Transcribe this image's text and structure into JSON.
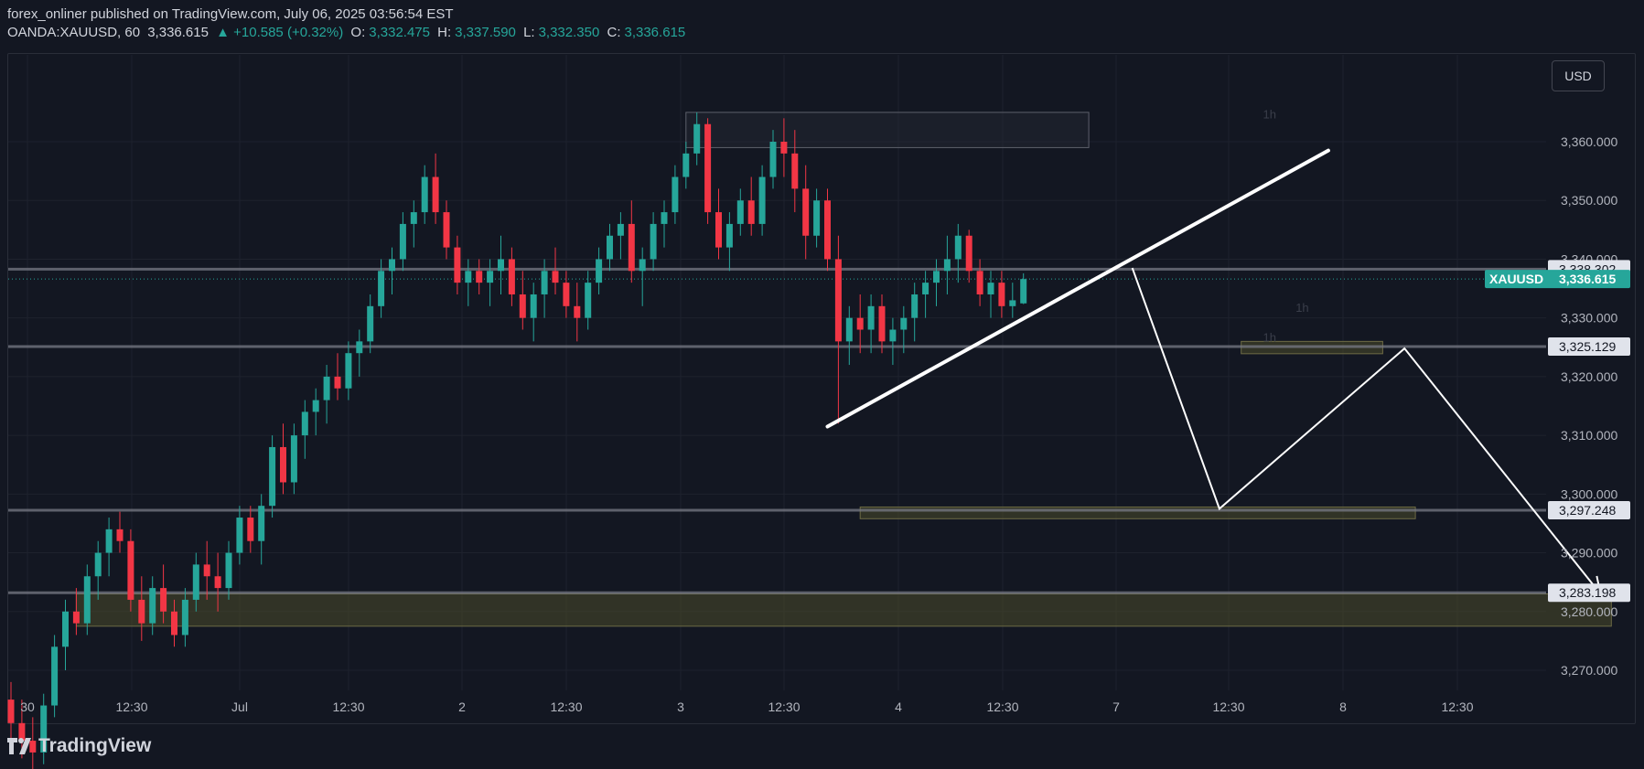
{
  "header": {
    "published": "forex_onliner published on TradingView.com, July 06, 2025 03:56:54 EST",
    "symbol": "OANDA:XAUUSD, 60",
    "last": "3,336.615",
    "change": "▲ +10.585 (+0.32%)",
    "o_label": "O:",
    "o_val": "3,332.475",
    "h_label": "H:",
    "h_val": "3,337.590",
    "l_label": "L:",
    "l_val": "3,332.350",
    "c_label": "C:",
    "c_val": "3,336.615"
  },
  "currency_button": "USD",
  "footer": {
    "brand": "TradingView",
    "logo": "tradingview-logo-icon"
  },
  "colors": {
    "bg": "#131722",
    "up": "#26a69a",
    "down": "#f23645",
    "level": "#787b86",
    "zone": "#4a4a2a",
    "drawing": "#ffffff"
  },
  "chart_data": {
    "type": "candlestick",
    "symbol": "XAUUSD",
    "interval": "60",
    "ylim": [
      3265,
      3368
    ],
    "y_ticks": [
      "3,360.000",
      "3,350.000",
      "3,340.000",
      "3,330.000",
      "3,320.000",
      "3,310.000",
      "3,300.000",
      "3,290.000",
      "3,280.000",
      "3,270.000"
    ],
    "y_tick_values": [
      3360,
      3350,
      3340,
      3330,
      3320,
      3310,
      3300,
      3290,
      3280,
      3270
    ],
    "x_ticks": [
      "30",
      "12:30",
      "Jul",
      "12:30",
      "2",
      "12:30",
      "3",
      "12:30",
      "4",
      "12:30",
      "7",
      "12:30",
      "8",
      "12:30"
    ],
    "ohlc": [
      [
        3265,
        3268,
        3258,
        3261
      ],
      [
        3261,
        3265,
        3255,
        3258
      ],
      [
        3258,
        3262,
        3252,
        3256
      ],
      [
        3256,
        3266,
        3254,
        3264
      ],
      [
        3264,
        3276,
        3262,
        3274
      ],
      [
        3274,
        3282,
        3270,
        3280
      ],
      [
        3280,
        3284,
        3276,
        3278
      ],
      [
        3278,
        3288,
        3276,
        3286
      ],
      [
        3286,
        3292,
        3282,
        3290
      ],
      [
        3290,
        3296,
        3286,
        3294
      ],
      [
        3294,
        3297,
        3290,
        3292
      ],
      [
        3292,
        3294,
        3280,
        3282
      ],
      [
        3282,
        3286,
        3275,
        3278
      ],
      [
        3278,
        3286,
        3276,
        3284
      ],
      [
        3284,
        3288,
        3278,
        3280
      ],
      [
        3280,
        3282,
        3274,
        3276
      ],
      [
        3276,
        3284,
        3274,
        3282
      ],
      [
        3282,
        3290,
        3280,
        3288
      ],
      [
        3288,
        3292,
        3282,
        3286
      ],
      [
        3286,
        3290,
        3280,
        3284
      ],
      [
        3284,
        3292,
        3282,
        3290
      ],
      [
        3290,
        3298,
        3288,
        3296
      ],
      [
        3296,
        3298,
        3290,
        3292
      ],
      [
        3292,
        3300,
        3288,
        3298
      ],
      [
        3298,
        3310,
        3296,
        3308
      ],
      [
        3308,
        3312,
        3300,
        3302
      ],
      [
        3302,
        3312,
        3300,
        3310
      ],
      [
        3310,
        3316,
        3306,
        3314
      ],
      [
        3314,
        3318,
        3310,
        3316
      ],
      [
        3316,
        3322,
        3312,
        3320
      ],
      [
        3320,
        3324,
        3316,
        3318
      ],
      [
        3318,
        3326,
        3316,
        3324
      ],
      [
        3324,
        3328,
        3320,
        3326
      ],
      [
        3326,
        3334,
        3324,
        3332
      ],
      [
        3332,
        3340,
        3330,
        3338
      ],
      [
        3338,
        3342,
        3334,
        3340
      ],
      [
        3340,
        3348,
        3338,
        3346
      ],
      [
        3346,
        3350,
        3342,
        3348
      ],
      [
        3348,
        3356,
        3346,
        3354
      ],
      [
        3354,
        3358,
        3346,
        3348
      ],
      [
        3348,
        3350,
        3340,
        3342
      ],
      [
        3342,
        3344,
        3334,
        3336
      ],
      [
        3336,
        3340,
        3332,
        3338
      ],
      [
        3338,
        3340,
        3334,
        3336
      ],
      [
        3336,
        3340,
        3332,
        3338
      ],
      [
        3338,
        3344,
        3334,
        3340
      ],
      [
        3340,
        3342,
        3332,
        3334
      ],
      [
        3334,
        3338,
        3328,
        3330
      ],
      [
        3330,
        3336,
        3326,
        3334
      ],
      [
        3334,
        3340,
        3330,
        3338
      ],
      [
        3338,
        3342,
        3334,
        3336
      ],
      [
        3336,
        3338,
        3330,
        3332
      ],
      [
        3332,
        3336,
        3326,
        3330
      ],
      [
        3330,
        3338,
        3328,
        3336
      ],
      [
        3336,
        3342,
        3334,
        3340
      ],
      [
        3340,
        3346,
        3338,
        3344
      ],
      [
        3344,
        3348,
        3340,
        3346
      ],
      [
        3346,
        3350,
        3336,
        3338
      ],
      [
        3338,
        3342,
        3332,
        3340
      ],
      [
        3340,
        3348,
        3338,
        3346
      ],
      [
        3346,
        3350,
        3342,
        3348
      ],
      [
        3348,
        3356,
        3346,
        3354
      ],
      [
        3354,
        3360,
        3352,
        3358
      ],
      [
        3358,
        3365,
        3356,
        3363
      ],
      [
        3363,
        3364,
        3346,
        3348
      ],
      [
        3348,
        3352,
        3340,
        3342
      ],
      [
        3342,
        3348,
        3338,
        3346
      ],
      [
        3346,
        3352,
        3344,
        3350
      ],
      [
        3350,
        3354,
        3344,
        3346
      ],
      [
        3346,
        3356,
        3344,
        3354
      ],
      [
        3354,
        3362,
        3352,
        3360
      ],
      [
        3360,
        3364,
        3354,
        3358
      ],
      [
        3358,
        3362,
        3348,
        3352
      ],
      [
        3352,
        3356,
        3340,
        3344
      ],
      [
        3344,
        3352,
        3342,
        3350
      ],
      [
        3350,
        3352,
        3338,
        3340
      ],
      [
        3340,
        3344,
        3312,
        3326
      ],
      [
        3326,
        3332,
        3322,
        3330
      ],
      [
        3330,
        3334,
        3324,
        3328
      ],
      [
        3328,
        3334,
        3324,
        3332
      ],
      [
        3332,
        3334,
        3324,
        3326
      ],
      [
        3326,
        3330,
        3322,
        3328
      ],
      [
        3328,
        3332,
        3324,
        3330
      ],
      [
        3330,
        3336,
        3326,
        3334
      ],
      [
        3334,
        3338,
        3330,
        3336
      ],
      [
        3336,
        3340,
        3332,
        3338
      ],
      [
        3338,
        3344,
        3334,
        3340
      ],
      [
        3340,
        3346,
        3336,
        3344
      ],
      [
        3344,
        3345,
        3336,
        3338
      ],
      [
        3338,
        3340,
        3332,
        3334
      ],
      [
        3334,
        3338,
        3330,
        3336
      ],
      [
        3336,
        3338,
        3330,
        3332
      ],
      [
        3332,
        3336,
        3330,
        3333
      ],
      [
        3332.475,
        3337.59,
        3332.35,
        3336.615
      ]
    ],
    "levels": [
      {
        "value": 3338.302,
        "label": "3,338.302"
      },
      {
        "value": 3325.129,
        "label": "3,325.129"
      },
      {
        "value": 3297.248,
        "label": "3,297.248"
      },
      {
        "value": 3283.198,
        "label": "3,283.198"
      }
    ],
    "current": {
      "name": "XAUUSD",
      "value": 3336.615,
      "label": "3,336.615"
    },
    "zones": [
      {
        "y": [
          3297.8,
          3295.8
        ],
        "x_bar": [
          78,
          129
        ]
      },
      {
        "y": [
          3326.0,
          3323.9
        ],
        "x_bar": [
          113,
          126
        ]
      },
      {
        "y": [
          3283.0,
          3277.5
        ],
        "x_bar": [
          6,
          147
        ]
      }
    ],
    "top_box": {
      "y": [
        3365,
        3359
      ],
      "x_bar": [
        62,
        99
      ]
    },
    "trendline": [
      {
        "bar": 75,
        "y": 3311.5
      },
      {
        "bar": 121,
        "y": 3358.5
      }
    ],
    "projection": [
      {
        "bar": 103,
        "y": 3338.5
      },
      {
        "bar": 111,
        "y": 3297.5
      },
      {
        "bar": 128,
        "y": 3324.8
      },
      {
        "bar": 146,
        "y": 3283.0
      }
    ],
    "annotations": [
      {
        "text": "1h",
        "bar": 115,
        "y": 3364
      },
      {
        "text": "1h",
        "bar": 118,
        "y": 3331
      },
      {
        "text": "1h",
        "bar": 115,
        "y": 3326
      }
    ]
  }
}
